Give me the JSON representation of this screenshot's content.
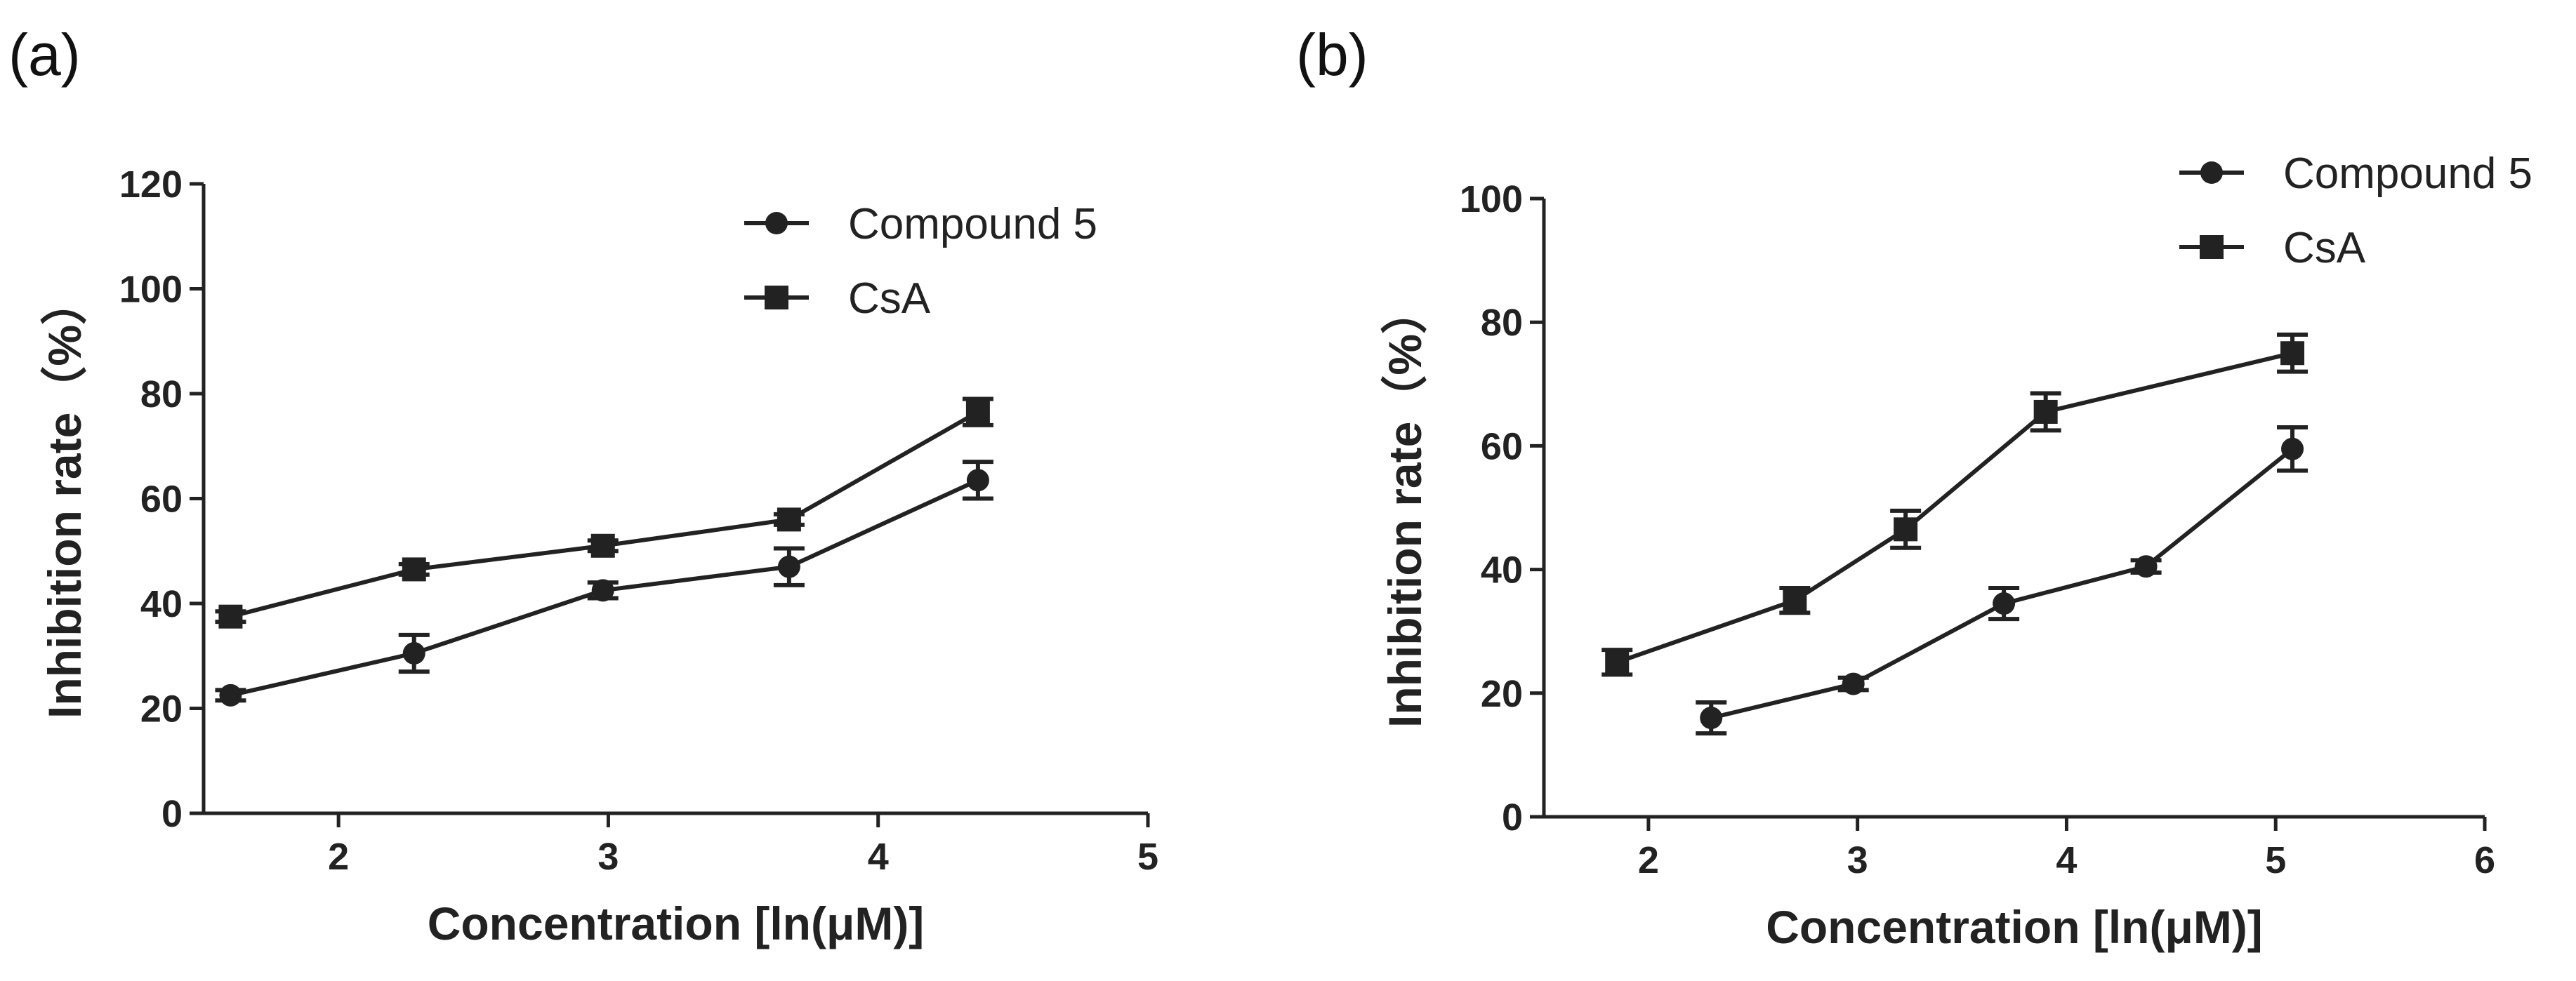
{
  "chart_data": [
    {
      "panel_label": "(a)",
      "type": "line",
      "xlabel": "Concentration [ln(μM)]",
      "ylabel": "Inhibition rate（%）",
      "xlim": [
        1.5,
        5
      ],
      "ylim": [
        0,
        120
      ],
      "xticks": [
        2,
        3,
        4,
        5
      ],
      "yticks": [
        0,
        20,
        40,
        60,
        80,
        100,
        120
      ],
      "legend_position": "top-right",
      "series": [
        {
          "name": "Compound 5",
          "marker": "circle",
          "x": [
            1.6,
            2.28,
            2.98,
            3.67,
            4.37
          ],
          "y": [
            22.5,
            30.5,
            42.5,
            47.0,
            63.5
          ],
          "err": [
            1.0,
            3.5,
            1.5,
            3.5,
            3.5
          ]
        },
        {
          "name": "CsA",
          "marker": "square",
          "x": [
            1.6,
            2.28,
            2.98,
            3.67,
            4.37
          ],
          "y": [
            37.5,
            46.5,
            51.0,
            56.0,
            76.5
          ],
          "err": [
            1.0,
            1.0,
            1.0,
            1.0,
            2.5
          ]
        }
      ]
    },
    {
      "panel_label": "(b)",
      "type": "line",
      "xlabel": "Concentration [ln(μM)]",
      "ylabel": "Inhibition rate（%）",
      "xlim": [
        1.5,
        6
      ],
      "ylim": [
        0,
        100
      ],
      "xticks": [
        2,
        3,
        4,
        5,
        6
      ],
      "yticks": [
        0,
        20,
        40,
        60,
        80,
        100
      ],
      "legend_position": "top-right",
      "series": [
        {
          "name": "Compound 5",
          "marker": "circle",
          "x": [
            2.3,
            2.98,
            3.7,
            4.38,
            5.08
          ],
          "y": [
            16.0,
            21.5,
            34.5,
            40.5,
            59.5
          ],
          "err": [
            2.5,
            1.0,
            2.5,
            1.0,
            3.5
          ]
        },
        {
          "name": "CsA",
          "marker": "square",
          "x": [
            1.85,
            2.7,
            3.23,
            3.9,
            5.08
          ],
          "y": [
            25.0,
            35.0,
            46.5,
            65.5,
            75.0
          ],
          "err": [
            2.0,
            2.0,
            3.0,
            3.0,
            3.0
          ]
        }
      ]
    }
  ]
}
